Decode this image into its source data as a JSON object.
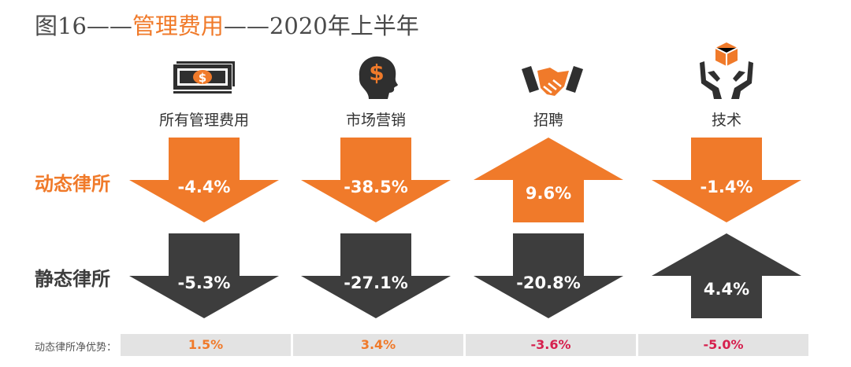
{
  "title": {
    "prefix": "图16——",
    "highlight": "管理费用",
    "suffix": "——2020年上半年"
  },
  "rows": {
    "dynamic": "动态律所",
    "static": "静态律所"
  },
  "bottom_label": "动态律所净优势：",
  "colors": {
    "orange": "#f07a2a",
    "dark": "#3d3d3d",
    "red": "#d6204e",
    "gray_bar": "#e3e3e3"
  },
  "chart_data": {
    "type": "table",
    "title": "图16——管理费用——2020年上半年",
    "categories": [
      {
        "label": "所有管理费用",
        "icon": "money-icon"
      },
      {
        "label": "市场营销",
        "icon": "head-dollar-icon"
      },
      {
        "label": "招聘",
        "icon": "handshake-icon"
      },
      {
        "label": "技术",
        "icon": "hands-box-icon"
      }
    ],
    "series": [
      {
        "name": "动态律所",
        "values": [
          -4.4,
          -38.5,
          9.6,
          -1.4
        ],
        "labels": [
          "-4.4%",
          "-38.5%",
          "9.6%",
          "-1.4%"
        ],
        "color": "#f07a2a"
      },
      {
        "name": "静态律所",
        "values": [
          -5.3,
          -27.1,
          -20.8,
          4.4
        ],
        "labels": [
          "-5.3%",
          "-27.1%",
          "-20.8%",
          "4.4%"
        ],
        "color": "#3d3d3d"
      }
    ],
    "net_advantage": {
      "name": "动态律所净优势",
      "values": [
        1.5,
        3.4,
        -3.6,
        -5.0
      ],
      "labels": [
        "1.5%",
        "3.4%",
        "-3.6%",
        "-5.0%"
      ]
    }
  }
}
